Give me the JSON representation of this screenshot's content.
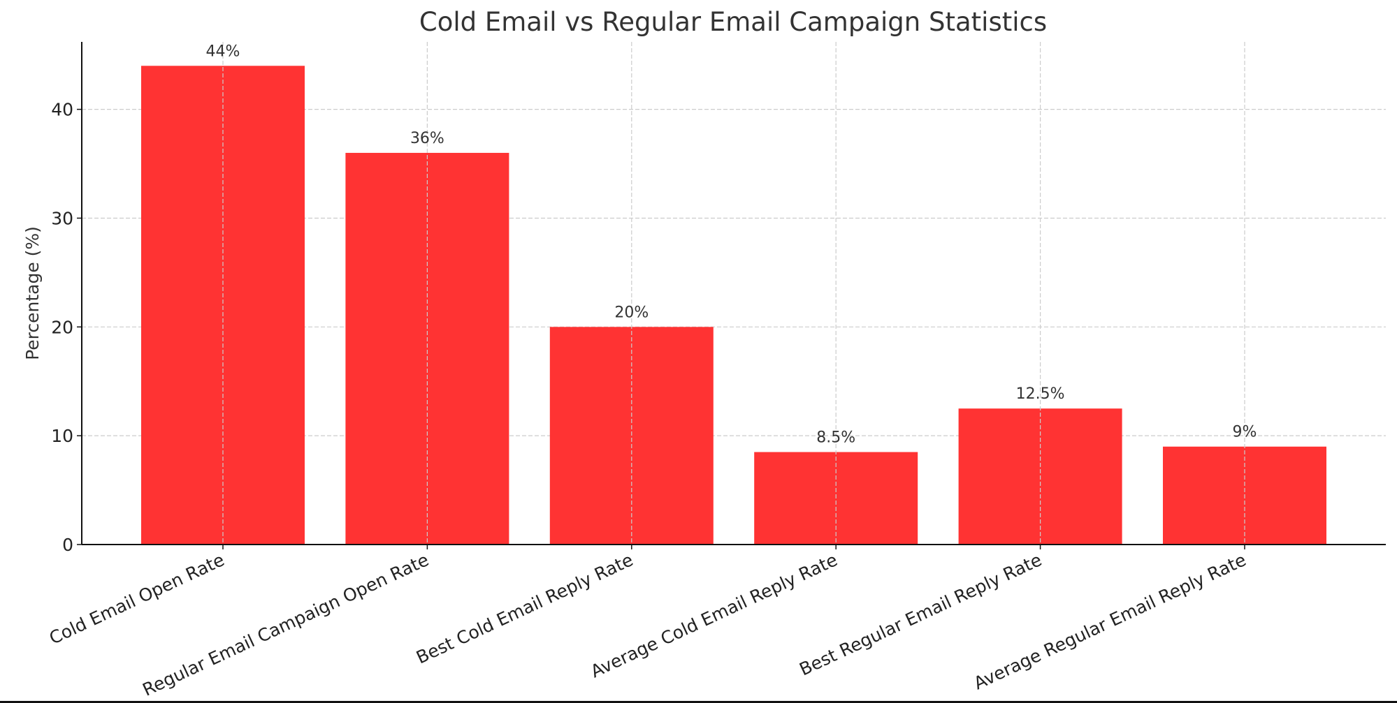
{
  "chart_data": {
    "type": "bar",
    "title": "Cold Email vs Regular Email Campaign Statistics",
    "xlabel": "",
    "ylabel": "Percentage (%)",
    "categories": [
      "Cold Email Open Rate",
      "Regular Email Campaign Open Rate",
      "Best Cold Email Reply Rate",
      "Average Cold Email Reply Rate",
      "Best Regular Email Reply Rate",
      "Average Regular Email Reply Rate"
    ],
    "values": [
      44,
      36,
      20,
      8.5,
      12.5,
      9
    ],
    "data_labels": [
      "44%",
      "36%",
      "20%",
      "8.5%",
      "12.5%",
      "9%"
    ],
    "ylim": [
      0,
      46.2
    ],
    "yticks": [
      "0",
      "10",
      "20",
      "30",
      "40"
    ],
    "grid": true,
    "bar_color": "#ff3333"
  }
}
